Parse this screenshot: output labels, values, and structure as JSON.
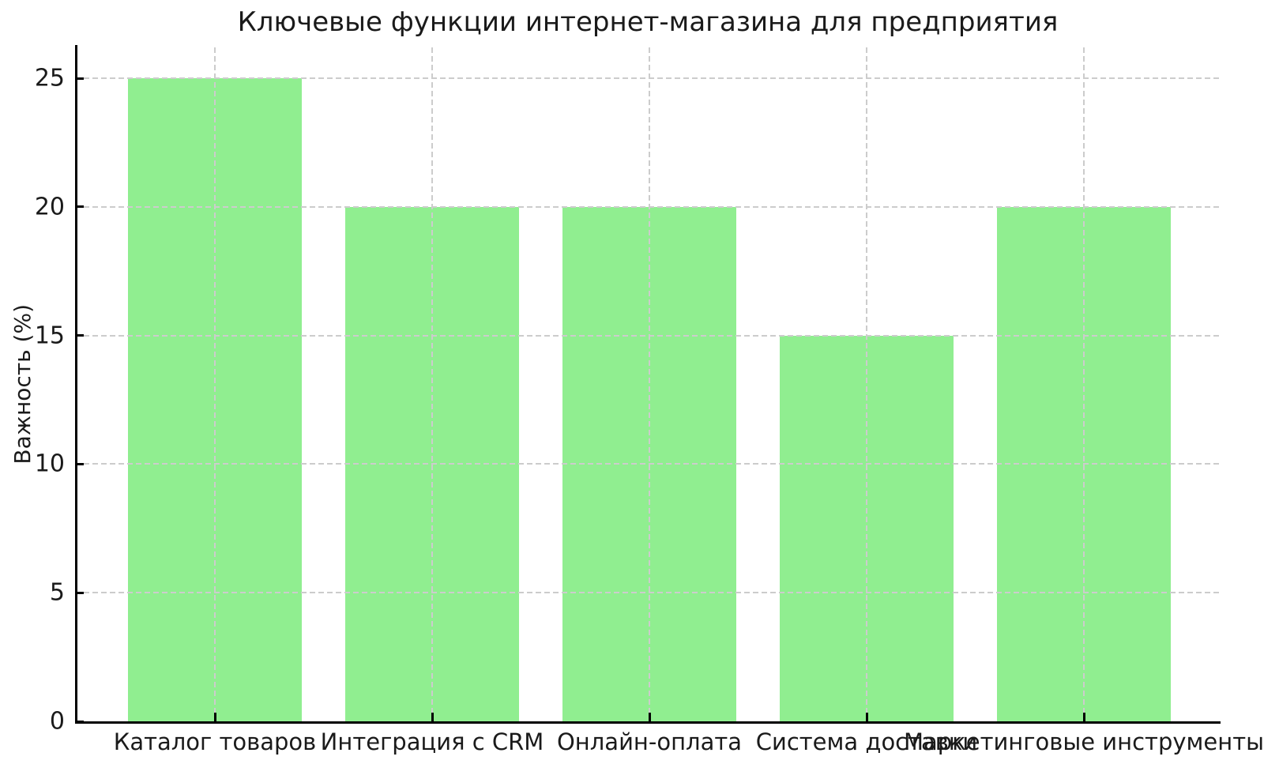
{
  "chart_data": {
    "type": "bar",
    "title": "Ключевые функции интернет-магазина для предприятия",
    "xlabel": "",
    "ylabel": "Важность (%)",
    "categories": [
      "Каталог товаров",
      "Интеграция с CRM",
      "Онлайн-оплата",
      "Система доставки",
      "Маркетинговые инструменты"
    ],
    "values": [
      25,
      20,
      20,
      15,
      20
    ],
    "yticks": [
      0,
      5,
      10,
      15,
      20,
      25
    ],
    "ylim": [
      0,
      26.2
    ],
    "grid": true,
    "grid_style": "dashed",
    "legend": "none",
    "bar_color": "#90EE90",
    "grid_color": "#cccccc",
    "axis_color": "#000000",
    "text_color": "#1a1a1a",
    "background_color": "#ffffff"
  }
}
